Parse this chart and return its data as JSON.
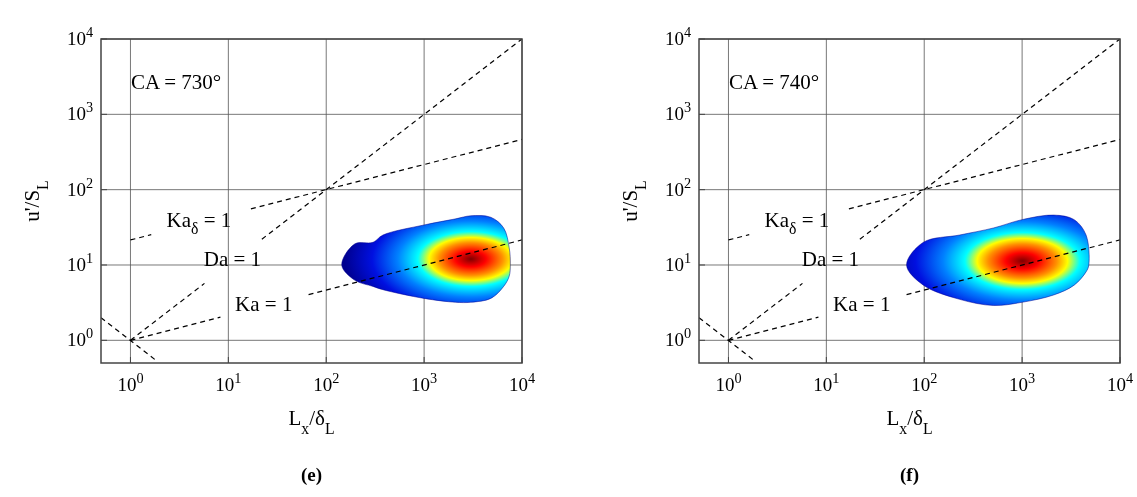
{
  "chart_data": [
    {
      "type": "line",
      "title": "CA = 730°",
      "xlabel": "L$_{x}$/δ$_{L}$",
      "ylabel": "u'/S$_{L}$",
      "annotations": [
        "(e)"
      ],
      "log": "xy",
      "grid": true,
      "line_style": "dashed",
      "marker": "none",
      "xlim": [
        0.5,
        10000
      ],
      "ylim": [
        0.5,
        10000
      ],
      "xticks": [
        {
          "value": 1,
          "label": "10$^{0}$"
        },
        {
          "value": 10,
          "label": "10$^{1}$"
        },
        {
          "value": 100,
          "label": "10$^{2}$"
        },
        {
          "value": 1000,
          "label": "10$^{3}$"
        },
        {
          "value": 10000,
          "label": "10$^{4}$"
        }
      ],
      "yticks": [
        {
          "value": 1,
          "label": "10$^{0}$"
        },
        {
          "value": 10,
          "label": "10$^{1}$"
        },
        {
          "value": 100,
          "label": "10$^{2}$"
        },
        {
          "value": 1000,
          "label": "10$^{3}$"
        },
        {
          "value": 10000,
          "label": "10$^{4}$"
        }
      ],
      "series": [
        {
          "type": "area",
          "color": "#00008f",
          "x": [
            144,
            195,
            300,
            380,
            1000,
            2100,
            3000,
            4800,
            6500,
            7400,
            7600,
            7400,
            6500,
            4800,
            3000,
            2100,
            1000,
            380,
            300,
            195,
            144
          ],
          "values": [
            10,
            19,
            20,
            25,
            34,
            41,
            45,
            43,
            31,
            17,
            10,
            7.1,
            5.2,
            3.6,
            3.2,
            3.2,
            3.6,
            4.7,
            5.2,
            6.3,
            10
          ]
        },
        {
          "name": "Ka$_{δ}$ = 1",
          "color": "#000000",
          "x": [
            1,
            1.63,
            5,
            17,
            10000
          ],
          "values": [
            21.5,
            25.3,
            null,
            55.6,
            464
          ]
        },
        {
          "name": "Da = 1",
          "color": "#000000",
          "x": [
            1,
            5.7,
            11,
            22,
            10000
          ],
          "values": [
            1,
            5.7,
            null,
            22,
            10000
          ]
        },
        {
          "name": "Ka = 1",
          "color": "#000000",
          "x": [
            1,
            8.3,
            23,
            66,
            10000
          ],
          "values": [
            1,
            2.03,
            null,
            4.05,
            21.5
          ]
        },
        {
          "color": "#000000",
          "x": [
            0.5,
            1.9
          ],
          "values": [
            2,
            0.52
          ]
        }
      ]
    },
    {
      "type": "line",
      "title": "CA = 740°",
      "xlabel": "L$_{x}$/δ$_{L}$",
      "ylabel": "u'/S$_{L}$",
      "annotations": [
        "(f)"
      ],
      "log": "xy",
      "grid": true,
      "line_style": "dashed",
      "marker": "none",
      "xlim": [
        0.5,
        10000
      ],
      "ylim": [
        0.5,
        10000
      ],
      "xticks": [
        {
          "value": 1,
          "label": "10$^{0}$"
        },
        {
          "value": 10,
          "label": "10$^{1}$"
        },
        {
          "value": 100,
          "label": "10$^{2}$"
        },
        {
          "value": 1000,
          "label": "10$^{3}$"
        },
        {
          "value": 10000,
          "label": "10$^{4}$"
        }
      ],
      "yticks": [
        {
          "value": 1,
          "label": "10$^{0}$"
        },
        {
          "value": 10,
          "label": "10$^{1}$"
        },
        {
          "value": 100,
          "label": "10$^{2}$"
        },
        {
          "value": 1000,
          "label": "10$^{3}$"
        },
        {
          "value": 10000,
          "label": "10$^{4}$"
        }
      ],
      "series": [
        {
          "type": "area",
          "color": "#00008f",
          "x": [
            66,
            98,
            230,
            510,
            1000,
            2100,
            3400,
            4500,
            4800,
            4500,
            3400,
            2100,
            1000,
            510,
            230,
            98,
            66
          ],
          "values": [
            10,
            20,
            25,
            31,
            40,
            46,
            40,
            25,
            10,
            8.1,
            5.4,
            4.0,
            3.2,
            2.9,
            3.5,
            5.4,
            10
          ]
        },
        {
          "name": "Ka$_{δ}$ = 1",
          "color": "#000000",
          "x": [
            1,
            1.63,
            5,
            17,
            10000
          ],
          "values": [
            21.5,
            25.3,
            null,
            55.6,
            464
          ]
        },
        {
          "name": "Da = 1",
          "color": "#000000",
          "x": [
            1,
            5.7,
            11,
            22,
            10000
          ],
          "values": [
            1,
            5.7,
            null,
            22,
            10000
          ]
        },
        {
          "name": "Ka = 1",
          "color": "#000000",
          "x": [
            1,
            8.3,
            23,
            66,
            10000
          ],
          "values": [
            1,
            2.03,
            null,
            4.05,
            21.5
          ]
        },
        {
          "color": "#000000",
          "x": [
            0.5,
            1.9
          ],
          "values": [
            2,
            0.52
          ]
        }
      ]
    }
  ]
}
